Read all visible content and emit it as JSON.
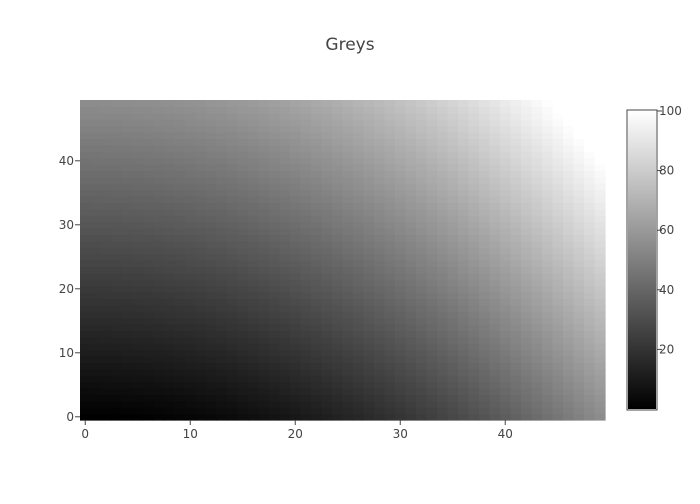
{
  "chart_data": {
    "type": "heatmap",
    "title": "Greys",
    "xlabel": "",
    "ylabel": "",
    "x_range": [
      0,
      49
    ],
    "y_range": [
      0,
      49
    ],
    "x_ticks": [
      0,
      10,
      20,
      30,
      40
    ],
    "y_ticks": [
      0,
      10,
      20,
      30,
      40
    ],
    "z_range": [
      0,
      100
    ],
    "z_formula": "z = 100 * (x/49)^2 * 0.5 + 100 * (y/49)^2 * 0.5 approximately (smooth gradient, black at origin, white at top-right)",
    "colorscale": "Greys",
    "colorscale_colors": [
      "#000000",
      "#ffffff"
    ],
    "colorbar_ticks": [
      20,
      40,
      60,
      80,
      100
    ],
    "grid": false
  }
}
